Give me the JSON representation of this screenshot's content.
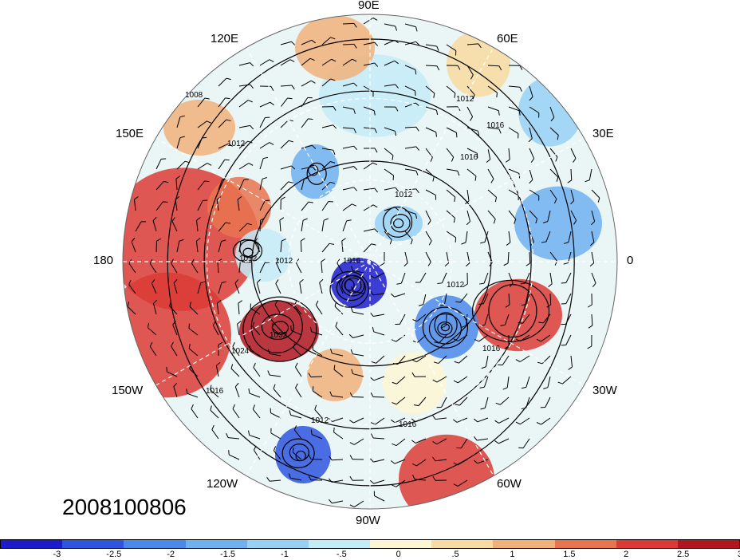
{
  "map": {
    "projection": "north polar stereographic",
    "longitude_labels": {
      "top": "90E",
      "top_right": "60E",
      "upper_right": "30E",
      "right": "0",
      "lower_right": "30W",
      "bottom_right": "60W",
      "bottom": "90W",
      "bottom_left": "120W",
      "lower_left": "150W",
      "left": "180",
      "upper_left": "150E",
      "top_left": "120E"
    },
    "isobar_labels": [
      "1008",
      "1012",
      "1012",
      "1016",
      "1012",
      "1016",
      "1012",
      "1012",
      "1016",
      "1032",
      "1024",
      "1016",
      "1016",
      "1012",
      "1012",
      "1016"
    ],
    "date_stamp": "2008100806"
  },
  "colorbar": {
    "colors": [
      "#1c1ccc",
      "#2e55e0",
      "#4a88ea",
      "#6fb0f0",
      "#98d0f5",
      "#c4ebf8",
      "#fdf6d4",
      "#f8dba0",
      "#f1b07a",
      "#e8744f",
      "#dc3b35",
      "#b1151f"
    ],
    "tick_labels": [
      "-3",
      "-2.5",
      "-2",
      "-1.5",
      "-1",
      "-.5",
      "0",
      ".5",
      "1",
      "1.5",
      "2",
      "2.5",
      "3"
    ]
  }
}
